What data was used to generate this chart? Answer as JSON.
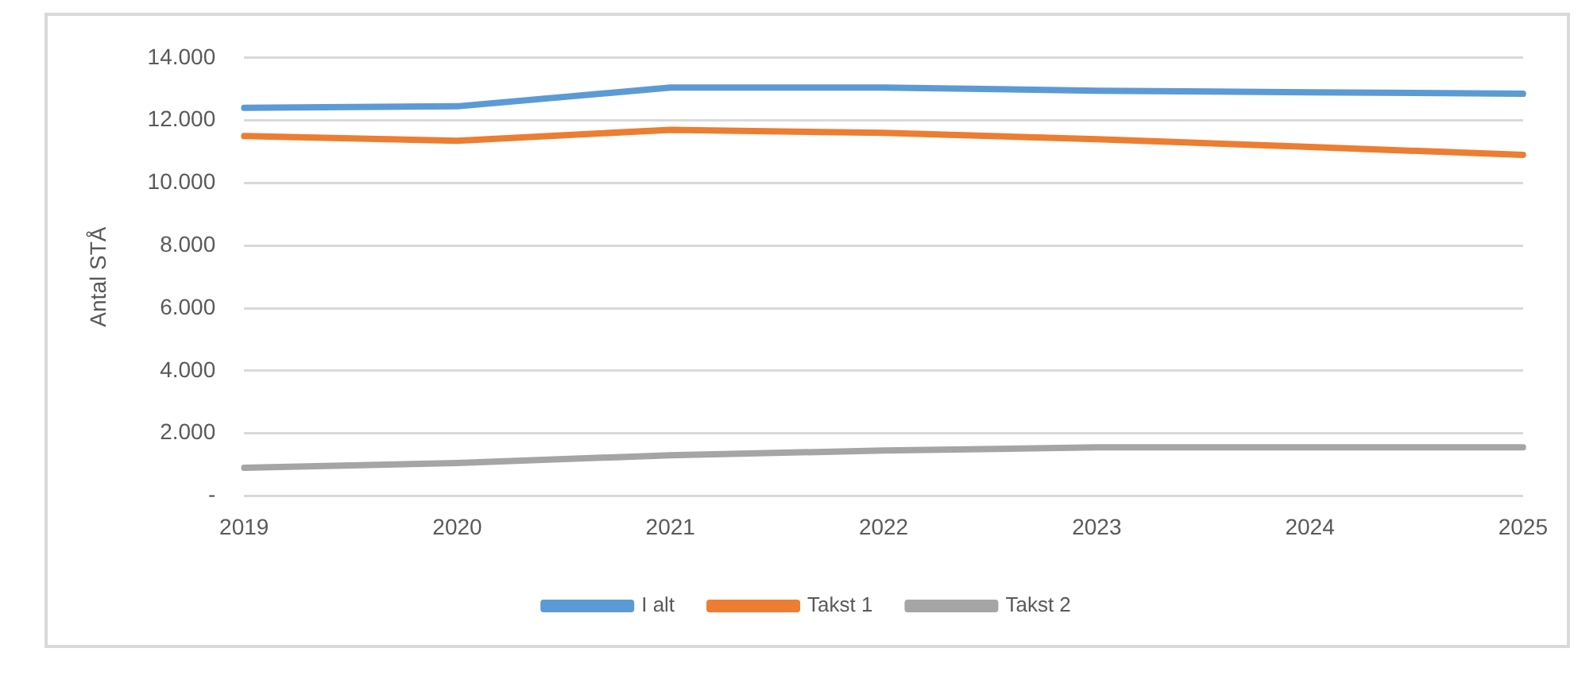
{
  "chart_data": {
    "type": "line",
    "ylabel": "Antal STÅ",
    "categories": [
      "2019",
      "2020",
      "2021",
      "2022",
      "2023",
      "2024",
      "2025"
    ],
    "series": [
      {
        "name": "I alt",
        "color": "#5b9bd5",
        "values": [
          12400,
          12450,
          13050,
          13050,
          12950,
          12900,
          12850
        ]
      },
      {
        "name": "Takst 1",
        "color": "#ed7d31",
        "values": [
          11500,
          11350,
          11700,
          11600,
          11400,
          11150,
          10900
        ]
      },
      {
        "name": "Takst 2",
        "color": "#a5a5a5",
        "values": [
          900,
          1050,
          1300,
          1450,
          1550,
          1550,
          1550
        ]
      }
    ],
    "ylim": [
      0,
      14000
    ],
    "yticks": [
      {
        "value": 0,
        "label": "-"
      },
      {
        "value": 2000,
        "label": "2.000"
      },
      {
        "value": 4000,
        "label": "4.000"
      },
      {
        "value": 6000,
        "label": "6.000"
      },
      {
        "value": 8000,
        "label": "8.000"
      },
      {
        "value": 10000,
        "label": "10.000"
      },
      {
        "value": 12000,
        "label": "12.000"
      },
      {
        "value": 14000,
        "label": "14.000"
      }
    ],
    "grid": "y",
    "legend": "bottom",
    "marker": "none",
    "line_style": "solid"
  }
}
